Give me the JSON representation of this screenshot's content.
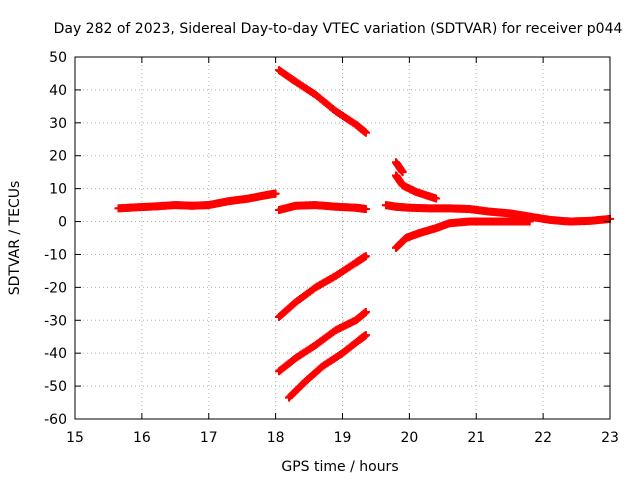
{
  "chart_data": {
    "type": "scatter",
    "title": "Day 282 of 2023, Sidereal Day-to-day VTEC variation (SDTVAR) for receiver p044",
    "xlabel": "GPS time / hours",
    "ylabel": "SDTVAR / TECUs",
    "xlim": [
      15,
      23
    ],
    "ylim": [
      -60,
      50
    ],
    "xticks": [
      "15",
      "16",
      "17",
      "18",
      "19",
      "20",
      "21",
      "22",
      "23"
    ],
    "yticks": [
      "50",
      "40",
      "30",
      "20",
      "10",
      "0",
      "-10",
      "-20",
      "-30",
      "-40",
      "-50",
      "-60"
    ],
    "grid": true,
    "marker": "+",
    "color": "#ff0000",
    "series": [
      {
        "x": [
          15.65,
          15.9,
          16.2,
          16.5,
          16.75,
          17.0,
          17.3,
          17.6,
          17.85,
          18.0
        ],
        "y": [
          4.0,
          4.3,
          4.6,
          5.0,
          4.8,
          5.0,
          6.2,
          7.0,
          8.0,
          8.5
        ]
      },
      {
        "x": [
          18.05,
          18.3,
          18.6,
          18.9,
          19.2,
          19.35
        ],
        "y": [
          3.5,
          4.8,
          5.0,
          4.5,
          4.2,
          3.8
        ]
      },
      {
        "x": [
          18.05,
          18.3,
          18.6,
          18.9,
          19.2,
          19.35
        ],
        "y": [
          46.0,
          42.5,
          38.5,
          33.5,
          29.5,
          27.0
        ]
      },
      {
        "x": [
          18.05,
          18.3,
          18.6,
          18.9,
          19.2,
          19.35
        ],
        "y": [
          -29.0,
          -24.5,
          -20.0,
          -16.5,
          -12.5,
          -10.5
        ]
      },
      {
        "x": [
          18.05,
          18.3,
          18.6,
          18.9,
          19.2,
          19.35
        ],
        "y": [
          -45.5,
          -41.5,
          -37.5,
          -33.0,
          -30.0,
          -27.5
        ]
      },
      {
        "x": [
          18.2,
          18.45,
          18.7,
          19.0,
          19.25,
          19.35
        ],
        "y": [
          -53.5,
          -48.5,
          -44.0,
          -40.0,
          -36.0,
          -34.5
        ]
      },
      {
        "x": [
          19.8,
          19.9
        ],
        "y": [
          18.0,
          15.0
        ]
      },
      {
        "x": [
          19.8,
          19.9,
          20.1,
          20.4
        ],
        "y": [
          14.0,
          11.0,
          9.0,
          7.0
        ]
      },
      {
        "x": [
          19.65,
          19.8,
          20.0,
          20.3,
          20.6,
          20.9,
          21.2,
          21.5,
          21.8,
          22.1,
          22.4,
          22.7,
          23.0
        ],
        "y": [
          5.0,
          4.5,
          4.2,
          4.0,
          4.0,
          3.8,
          3.0,
          2.5,
          1.5,
          0.5,
          0.0,
          0.2,
          0.8
        ]
      },
      {
        "x": [
          19.8,
          19.95,
          20.15,
          20.4,
          20.6,
          20.9,
          21.2,
          21.5,
          21.8
        ],
        "y": [
          -8.0,
          -5.0,
          -3.5,
          -2.0,
          -0.5,
          0.0,
          0.0,
          0.0,
          0.0
        ]
      }
    ]
  }
}
